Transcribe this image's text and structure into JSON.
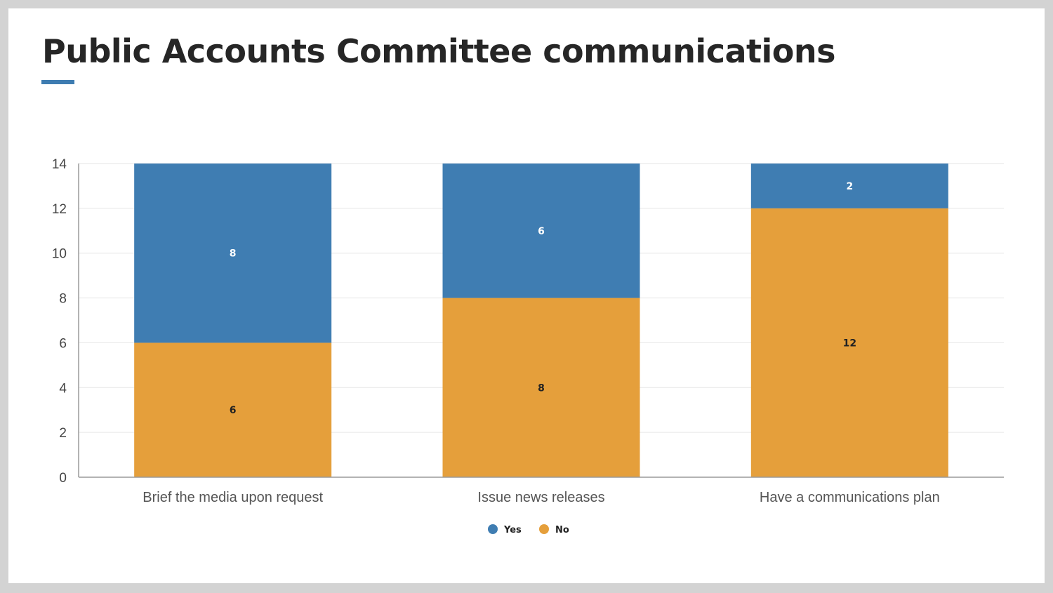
{
  "page": {
    "title": "Public Accounts Committee communications",
    "accent_color": "#3e7cb1"
  },
  "chart_data": {
    "type": "bar",
    "stacked": true,
    "title": "",
    "xlabel": "",
    "ylabel": "",
    "categories": [
      "Brief the media upon request",
      "Issue news releases",
      "Have a communications plan"
    ],
    "series": [
      {
        "name": "No",
        "values": [
          6,
          8,
          12
        ],
        "color": "#e59f3b",
        "label_color": "#222222"
      },
      {
        "name": "Yes",
        "values": [
          8,
          6,
          2
        ],
        "color": "#3f7db2",
        "label_color": "#ffffff"
      }
    ],
    "yticks": [
      0,
      2,
      4,
      6,
      8,
      10,
      12,
      14
    ],
    "ylim": [
      0,
      14
    ],
    "grid": true,
    "legend": {
      "position": "bottom-center",
      "order": [
        "Yes",
        "No"
      ]
    }
  }
}
